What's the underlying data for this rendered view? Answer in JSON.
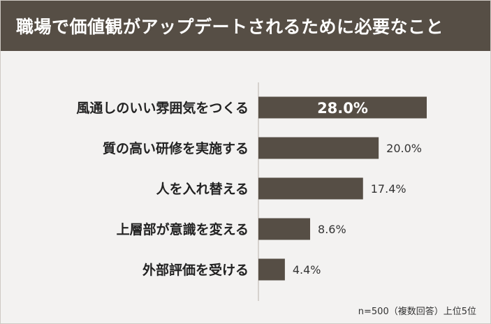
{
  "header": {
    "title": "職場で価値観がアップデートされるために必要なこと"
  },
  "footnote": "n=500（複数回答）上位5位",
  "colors": {
    "header_bg": "#564e45",
    "bar": "#564e45",
    "background": "#f3f2f1"
  },
  "chart_data": {
    "type": "bar",
    "orientation": "horizontal",
    "title": "職場で価値観がアップデートされるために必要なこと",
    "categories": [
      "風通しのいい雰囲気をつくる",
      "質の高い研修を実施する",
      "人を入れ替える",
      "上層部が意識を変える",
      "外部評価を受ける"
    ],
    "values": [
      28.0,
      20.0,
      17.4,
      8.6,
      4.4
    ],
    "value_labels": [
      "28.0%",
      "20.0%",
      "17.4%",
      "8.6%",
      "4.4%"
    ],
    "unit": "%",
    "xlim": [
      0,
      28.0
    ],
    "grid": false,
    "legend": "none"
  }
}
